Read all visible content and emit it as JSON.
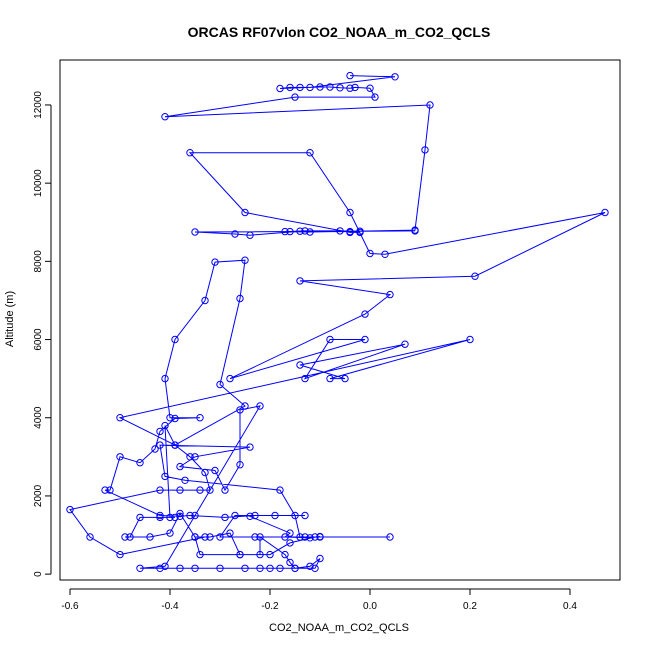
{
  "chart_data": {
    "type": "line",
    "title": "ORCAS RF07vlon CO2_NOAA_m_CO2_QCLS",
    "xlabel": "CO2_NOAA_m_CO2_QCLS",
    "ylabel": "Altitude (m)",
    "xlim": [
      -0.62,
      0.5
    ],
    "ylim": [
      -150,
      13150
    ],
    "x_ticks": [
      -0.6,
      -0.4,
      -0.2,
      0.0,
      0.2,
      0.4
    ],
    "x_tick_labels": [
      "-0.6",
      "-0.4",
      "-0.2",
      "0.0",
      "0.2",
      "0.4"
    ],
    "y_ticks": [
      0,
      2000,
      4000,
      6000,
      8000,
      10000,
      12000
    ],
    "y_tick_labels": [
      "0",
      "2000",
      "4000",
      "6000",
      "8000",
      "10000",
      "12000"
    ],
    "grid": false,
    "marker": "open-circle",
    "series": [
      {
        "name": "",
        "color": "#0000ff",
        "points": [
          [
            -0.04,
            12750
          ],
          [
            0.05,
            12720
          ],
          [
            -0.12,
            12450
          ],
          [
            -0.14,
            12450
          ],
          [
            -0.16,
            12450
          ],
          [
            -0.18,
            12420
          ],
          [
            -0.1,
            12460
          ],
          [
            -0.08,
            12460
          ],
          [
            -0.06,
            12440
          ],
          [
            -0.04,
            12430
          ],
          [
            -0.03,
            12450
          ],
          [
            0.0,
            12430
          ],
          [
            0.01,
            12200
          ],
          [
            -0.15,
            12200
          ],
          [
            -0.41,
            11700
          ],
          [
            0.12,
            12000
          ],
          [
            0.11,
            10850
          ],
          [
            0.09,
            8800
          ],
          [
            -0.12,
            8750
          ],
          [
            -0.17,
            8760
          ],
          [
            -0.13,
            8780
          ],
          [
            -0.06,
            8780
          ],
          [
            -0.02,
            8770
          ],
          [
            0.09,
            8780
          ],
          [
            -0.35,
            8750
          ],
          [
            -0.27,
            8700
          ],
          [
            -0.24,
            8670
          ],
          [
            -0.14,
            8770
          ],
          [
            -0.16,
            8760
          ],
          [
            -0.04,
            8760
          ],
          [
            -0.02,
            8740
          ],
          [
            -0.04,
            8740
          ],
          [
            -0.25,
            9250
          ],
          [
            -0.36,
            10780
          ],
          [
            -0.12,
            10780
          ],
          [
            -0.04,
            9250
          ],
          [
            0.0,
            8200
          ],
          [
            0.03,
            8180
          ],
          [
            0.47,
            9250
          ],
          [
            0.21,
            7620
          ],
          [
            -0.14,
            7500
          ],
          [
            0.04,
            7150
          ],
          [
            -0.01,
            6650
          ],
          [
            -0.28,
            5000
          ],
          [
            -0.01,
            6000
          ],
          [
            -0.08,
            6000
          ],
          [
            -0.13,
            5000
          ],
          [
            0.07,
            5880
          ],
          [
            -0.14,
            5350
          ],
          [
            -0.05,
            5000
          ],
          [
            -0.08,
            5000
          ],
          [
            0.2,
            6000
          ],
          [
            -0.5,
            4000
          ],
          [
            -0.39,
            3300
          ],
          [
            -0.25,
            4300
          ],
          [
            -0.3,
            4850
          ],
          [
            -0.26,
            7050
          ],
          [
            -0.25,
            8030
          ],
          [
            -0.31,
            7980
          ],
          [
            -0.33,
            7000
          ],
          [
            -0.39,
            6000
          ],
          [
            -0.41,
            5000
          ],
          [
            -0.4,
            4000
          ],
          [
            -0.34,
            4000
          ],
          [
            -0.39,
            3980
          ],
          [
            -0.42,
            3650
          ],
          [
            -0.43,
            3200
          ],
          [
            -0.46,
            2850
          ],
          [
            -0.5,
            3000
          ],
          [
            -0.52,
            2150
          ],
          [
            -0.53,
            2150
          ],
          [
            -0.42,
            1500
          ],
          [
            -0.38,
            1480
          ],
          [
            -0.36,
            1500
          ],
          [
            -0.29,
            1450
          ],
          [
            -0.23,
            1500
          ],
          [
            -0.24,
            1480
          ],
          [
            -0.16,
            1050
          ],
          [
            -0.17,
            950
          ],
          [
            -0.12,
            930
          ],
          [
            -0.1,
            960
          ],
          [
            -0.11,
            950
          ],
          [
            -0.16,
            800
          ],
          [
            -0.2,
            500
          ],
          [
            -0.26,
            500
          ],
          [
            -0.34,
            500
          ],
          [
            -0.35,
            950
          ],
          [
            -0.33,
            950
          ],
          [
            -0.5,
            500
          ],
          [
            -0.56,
            950
          ],
          [
            -0.6,
            1650
          ],
          [
            -0.42,
            2150
          ],
          [
            -0.38,
            2150
          ],
          [
            -0.34,
            2150
          ],
          [
            -0.32,
            2150
          ],
          [
            -0.33,
            2600
          ],
          [
            -0.36,
            3000
          ],
          [
            -0.39,
            3300
          ],
          [
            -0.41,
            3800
          ],
          [
            -0.4,
            1450
          ],
          [
            -0.39,
            1450
          ],
          [
            -0.42,
            1450
          ],
          [
            -0.46,
            1450
          ],
          [
            -0.48,
            950
          ],
          [
            -0.49,
            950
          ],
          [
            -0.44,
            950
          ],
          [
            -0.4,
            1050
          ],
          [
            -0.38,
            1550
          ],
          [
            -0.35,
            950
          ],
          [
            -0.32,
            950
          ],
          [
            -0.28,
            1050
          ],
          [
            -0.26,
            500
          ],
          [
            -0.22,
            500
          ],
          [
            -0.22,
            950
          ],
          [
            -0.17,
            500
          ],
          [
            -0.16,
            300
          ],
          [
            -0.15,
            150
          ],
          [
            -0.12,
            200
          ],
          [
            -0.1,
            400
          ],
          [
            -0.11,
            150
          ],
          [
            -0.15,
            150
          ],
          [
            -0.18,
            150
          ],
          [
            -0.2,
            150
          ],
          [
            -0.22,
            150
          ],
          [
            -0.25,
            150
          ],
          [
            -0.3,
            150
          ],
          [
            -0.35,
            150
          ],
          [
            -0.38,
            150
          ],
          [
            -0.42,
            150
          ],
          [
            -0.46,
            150
          ],
          [
            -0.41,
            200
          ],
          [
            -0.35,
            1500
          ],
          [
            -0.22,
            4300
          ],
          [
            -0.26,
            4200
          ],
          [
            -0.26,
            2800
          ],
          [
            -0.29,
            2150
          ],
          [
            -0.31,
            2650
          ],
          [
            -0.38,
            2750
          ],
          [
            -0.35,
            3000
          ],
          [
            -0.24,
            3250
          ],
          [
            -0.42,
            3300
          ],
          [
            -0.41,
            2500
          ],
          [
            -0.37,
            2400
          ],
          [
            -0.18,
            2150
          ],
          [
            -0.15,
            1500
          ],
          [
            -0.14,
            950
          ],
          [
            -0.13,
            950
          ],
          [
            -0.1,
            950
          ],
          [
            0.04,
            950
          ],
          [
            -0.23,
            950
          ],
          [
            -0.3,
            950
          ],
          [
            -0.27,
            1500
          ],
          [
            -0.19,
            1500
          ],
          [
            -0.13,
            1500
          ]
        ]
      }
    ]
  }
}
